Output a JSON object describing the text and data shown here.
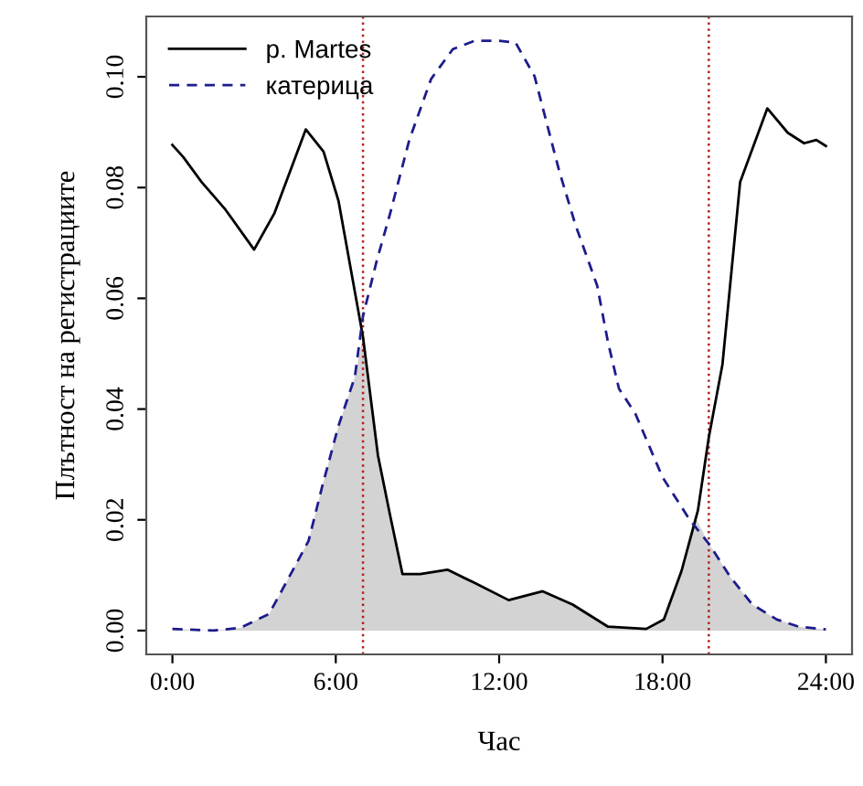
{
  "chart_data": {
    "type": "line",
    "xlabel": "Час",
    "ylabel": "Плътност на регистрациите",
    "xlim": [
      -0.96,
      24.96
    ],
    "ylim": [
      -0.0043,
      0.1109
    ],
    "xticks": [
      {
        "value": 0,
        "label": "0:00"
      },
      {
        "value": 6,
        "label": "6:00"
      },
      {
        "value": 12,
        "label": "12:00"
      },
      {
        "value": 18,
        "label": "18:00"
      },
      {
        "value": 24,
        "label": "24:00"
      }
    ],
    "yticks": [
      {
        "value": 0,
        "label": "0.00"
      },
      {
        "value": 0.02,
        "label": "0.02"
      },
      {
        "value": 0.04,
        "label": "0.04"
      },
      {
        "value": 0.06,
        "label": "0.06"
      },
      {
        "value": 0.08,
        "label": "0.08"
      },
      {
        "value": 0.1,
        "label": "0.10"
      }
    ],
    "grid": false,
    "legend": "top left",
    "series": [
      {
        "type": "area",
        "color": "#d3d3d3",
        "x": [
          0,
          1.5,
          2.5,
          3.55,
          4.4,
          5.0,
          5.5,
          6.1,
          6.7,
          7.0,
          7.55,
          8.0,
          8.45,
          9.1,
          10.1,
          11.1,
          12.35,
          13.6,
          14.7,
          16.0,
          17.4,
          18.05,
          18.7,
          19.2,
          19.7,
          20.5,
          21.3,
          22.2,
          23.0,
          24
        ],
        "values": [
          0.0003,
          0,
          0.0005,
          0.003,
          0.0107,
          0.0162,
          0.026,
          0.037,
          0.0458,
          0.053,
          0.0316,
          0.0207,
          0.0102,
          0.0102,
          0.011,
          0.0086,
          0.0055,
          0.0071,
          0.0047,
          0.0007,
          0.0003,
          0.002,
          0.0108,
          0.0205,
          0.0157,
          0.0096,
          0.0047,
          0.002,
          0.0007,
          0.0002
        ]
      },
      {
        "name": "p. Martes",
        "color": "#000000",
        "line_style": "solid",
        "x": [
          0,
          0.4,
          1.07,
          1.95,
          3.0,
          3.75,
          4.9,
          5.55,
          6.1,
          7.0,
          7.55,
          8.0,
          8.45,
          9.1,
          10.1,
          11.1,
          12.35,
          13.6,
          14.7,
          16.0,
          17.4,
          18.05,
          18.7,
          19.3,
          19.7,
          20.2,
          20.85,
          21.85,
          22.6,
          23.2,
          23.65,
          24
        ],
        "values": [
          0.0877,
          0.0855,
          0.081,
          0.076,
          0.0688,
          0.0754,
          0.0905,
          0.0865,
          0.0776,
          0.053,
          0.0316,
          0.0207,
          0.0102,
          0.0102,
          0.011,
          0.0086,
          0.0055,
          0.0071,
          0.0047,
          0.0007,
          0.0003,
          0.002,
          0.0108,
          0.0217,
          0.0349,
          0.048,
          0.081,
          0.0943,
          0.0899,
          0.088,
          0.0886,
          0.0875
        ]
      },
      {
        "name": "катерица",
        "color": "#1c1c8c",
        "line_style": "dashed",
        "x": [
          0,
          1.5,
          2.5,
          3.55,
          4.4,
          5.0,
          5.5,
          6.1,
          6.7,
          7.0,
          7.5,
          8.0,
          8.7,
          9.5,
          10.3,
          11.1,
          12.0,
          12.6,
          13.3,
          14.2,
          14.8,
          15.6,
          16.0,
          16.4,
          17.0,
          18.0,
          19.0,
          19.7,
          20.5,
          21.3,
          22.2,
          23.0,
          24
        ],
        "values": [
          0.0003,
          0,
          0.0005,
          0.003,
          0.0107,
          0.0162,
          0.026,
          0.037,
          0.0458,
          0.0568,
          0.0667,
          0.0754,
          0.0886,
          0.0996,
          0.105,
          0.1065,
          0.1065,
          0.1062,
          0.1001,
          0.0831,
          0.0733,
          0.0623,
          0.052,
          0.0437,
          0.0392,
          0.0277,
          0.02,
          0.0157,
          0.0096,
          0.0047,
          0.002,
          0.0007,
          0.0002
        ]
      }
    ],
    "ref_lines": [
      {
        "axis": "x",
        "value": 7.0,
        "color": "#b22222",
        "line_style": "dotted"
      },
      {
        "axis": "x",
        "value": 19.7,
        "color": "#b22222",
        "line_style": "dotted"
      }
    ]
  }
}
